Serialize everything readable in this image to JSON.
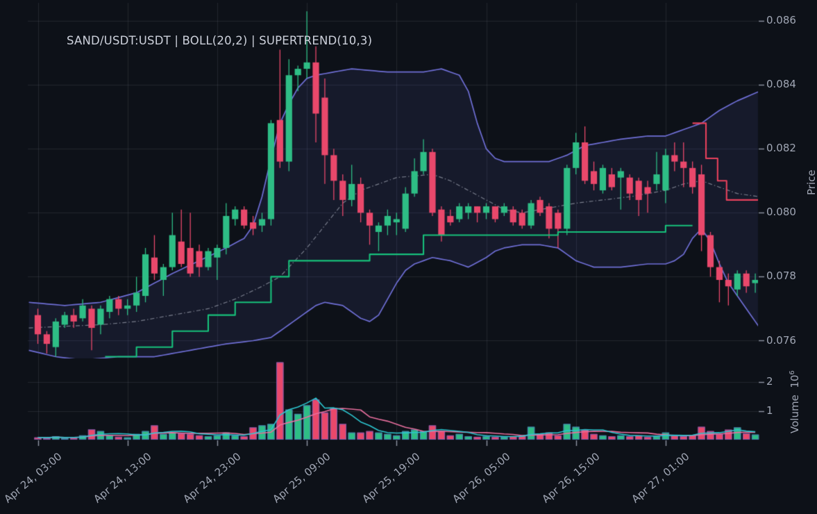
{
  "title": "SAND/USDT:USDT | BOLL(20,2) | SUPERTREND(10,3)",
  "axes": {
    "price_label": "Price",
    "volume_label": "Volume",
    "volume_scale_base": "10",
    "volume_scale_exp": "6"
  },
  "colors": {
    "background": "#0d1118",
    "grid": "rgba(170,180,200,0.13)",
    "tick_mark": "#9096a3",
    "axis_text": "#a0a6b4",
    "title_text": "#cdd1db",
    "up": "#2ebd85",
    "down": "#e9486b",
    "boll_band": "#6f6fd6",
    "boll_fill": "rgba(111,111,214,0.10)",
    "boll_mid": "rgba(186,192,205,0.6)",
    "supertrend_up": "#17c17b",
    "supertrend_down": "#e8415c",
    "vol_ma_fast": "#2cc5cf",
    "vol_ma_slow": "#e86f9e",
    "vol_bar_edge": "rgba(84,98,200,0.75)"
  },
  "chart_data": {
    "type": "candlestick",
    "symbol": "SAND/USDT:USDT",
    "interval": "1h",
    "indicators": [
      "BOLL(20,2)",
      "SUPERTREND(10,3)"
    ],
    "start_time": "Apr 24, 03:00",
    "end_time": "Apr 27, 11:00",
    "ylim": [
      0.0754,
      0.0866
    ],
    "volume_ylim_millions": [
      0,
      2.95
    ],
    "price_ticks": [
      "0.076",
      "0.078",
      "0.080",
      "0.082",
      "0.084",
      "0.086"
    ],
    "volume_ticks": [
      "1",
      "2"
    ],
    "x_ticks": {
      "indices": [
        0,
        10,
        20,
        30,
        40,
        50,
        60,
        70
      ],
      "labels": [
        "Apr 24, 03:00",
        "Apr 24, 13:00",
        "Apr 24, 23:00",
        "Apr 25, 09:00",
        "Apr 25, 19:00",
        "Apr 26, 05:00",
        "Apr 26, 15:00",
        "Apr 27, 01:00"
      ]
    },
    "ohlcv": [
      [
        0.0768,
        0.077,
        0.0759,
        0.0762,
        0.08
      ],
      [
        0.0762,
        0.0763,
        0.0756,
        0.0759,
        0.06
      ],
      [
        0.0758,
        0.0767,
        0.0755,
        0.0766,
        0.12
      ],
      [
        0.0765,
        0.0769,
        0.0764,
        0.0768,
        0.06
      ],
      [
        0.0768,
        0.077,
        0.0764,
        0.0766,
        0.07
      ],
      [
        0.0767,
        0.0773,
        0.0766,
        0.0771,
        0.15
      ],
      [
        0.077,
        0.0771,
        0.0757,
        0.0764,
        0.36
      ],
      [
        0.0765,
        0.0771,
        0.0762,
        0.077,
        0.3
      ],
      [
        0.0769,
        0.0774,
        0.0767,
        0.0773,
        0.15
      ],
      [
        0.0773,
        0.0774,
        0.0768,
        0.077,
        0.1
      ],
      [
        0.077,
        0.0773,
        0.0768,
        0.0771,
        0.08
      ],
      [
        0.0771,
        0.078,
        0.0769,
        0.0775,
        0.2
      ],
      [
        0.0774,
        0.0789,
        0.0772,
        0.0787,
        0.3
      ],
      [
        0.0786,
        0.0793,
        0.0779,
        0.0781,
        0.5
      ],
      [
        0.0779,
        0.0784,
        0.0774,
        0.0783,
        0.2
      ],
      [
        0.0783,
        0.08,
        0.0782,
        0.0793,
        0.25
      ],
      [
        0.0791,
        0.0801,
        0.0783,
        0.0784,
        0.22
      ],
      [
        0.0789,
        0.08,
        0.078,
        0.0781,
        0.2
      ],
      [
        0.0788,
        0.079,
        0.078,
        0.0783,
        0.15
      ],
      [
        0.0783,
        0.0789,
        0.0782,
        0.0788,
        0.12
      ],
      [
        0.0786,
        0.079,
        0.0779,
        0.0789,
        0.15
      ],
      [
        0.0789,
        0.0803,
        0.0787,
        0.0799,
        0.25
      ],
      [
        0.0798,
        0.0802,
        0.0796,
        0.0801,
        0.15
      ],
      [
        0.0801,
        0.0802,
        0.0795,
        0.0796,
        0.12
      ],
      [
        0.0797,
        0.0799,
        0.0793,
        0.0795,
        0.43
      ],
      [
        0.0796,
        0.08,
        0.0794,
        0.0798,
        0.5
      ],
      [
        0.0798,
        0.0829,
        0.0796,
        0.0828,
        0.55
      ],
      [
        0.0829,
        0.0851,
        0.0814,
        0.0816,
        2.7
      ],
      [
        0.0816,
        0.0848,
        0.0813,
        0.0843,
        1.05
      ],
      [
        0.0843,
        0.0846,
        0.0838,
        0.0845,
        0.9
      ],
      [
        0.0845,
        0.0863,
        0.0842,
        0.0847,
        1.2
      ],
      [
        0.0847,
        0.0852,
        0.0822,
        0.0831,
        1.4
      ],
      [
        0.0836,
        0.0842,
        0.0809,
        0.0818,
        0.95
      ],
      [
        0.0818,
        0.082,
        0.0804,
        0.081,
        1.1
      ],
      [
        0.081,
        0.0812,
        0.0799,
        0.0804,
        0.55
      ],
      [
        0.0804,
        0.0815,
        0.0802,
        0.0809,
        0.25
      ],
      [
        0.0809,
        0.0811,
        0.0797,
        0.08,
        0.25
      ],
      [
        0.08,
        0.0801,
        0.079,
        0.0796,
        0.3
      ],
      [
        0.0794,
        0.0797,
        0.0788,
        0.0796,
        0.25
      ],
      [
        0.0796,
        0.0801,
        0.0793,
        0.0799,
        0.2
      ],
      [
        0.0797,
        0.08,
        0.0793,
        0.0798,
        0.15
      ],
      [
        0.0795,
        0.0808,
        0.0794,
        0.0806,
        0.3
      ],
      [
        0.0806,
        0.0817,
        0.0805,
        0.0813,
        0.35
      ],
      [
        0.0813,
        0.0823,
        0.0812,
        0.0819,
        0.3
      ],
      [
        0.0819,
        0.082,
        0.0799,
        0.08,
        0.5
      ],
      [
        0.0801,
        0.0802,
        0.0791,
        0.0793,
        0.3
      ],
      [
        0.0799,
        0.0801,
        0.0796,
        0.0797,
        0.15
      ],
      [
        0.0798,
        0.0803,
        0.0797,
        0.0802,
        0.2
      ],
      [
        0.08,
        0.0803,
        0.0798,
        0.0802,
        0.12
      ],
      [
        0.0802,
        0.0802,
        0.0797,
        0.08,
        0.1
      ],
      [
        0.08,
        0.0803,
        0.0798,
        0.0802,
        0.12
      ],
      [
        0.0802,
        0.0802,
        0.0797,
        0.0798,
        0.1
      ],
      [
        0.08,
        0.0803,
        0.0799,
        0.0802,
        0.1
      ],
      [
        0.0801,
        0.0802,
        0.0796,
        0.0797,
        0.12
      ],
      [
        0.08,
        0.0801,
        0.0795,
        0.0796,
        0.15
      ],
      [
        0.0796,
        0.0804,
        0.0795,
        0.0803,
        0.45
      ],
      [
        0.0804,
        0.0805,
        0.0799,
        0.08,
        0.2
      ],
      [
        0.0802,
        0.0803,
        0.0792,
        0.0795,
        0.25
      ],
      [
        0.08,
        0.0801,
        0.0789,
        0.0795,
        0.15
      ],
      [
        0.0795,
        0.0815,
        0.0793,
        0.0814,
        0.55
      ],
      [
        0.0814,
        0.0825,
        0.0812,
        0.0822,
        0.45
      ],
      [
        0.0822,
        0.0827,
        0.0809,
        0.081,
        0.35
      ],
      [
        0.0813,
        0.0816,
        0.0807,
        0.0809,
        0.2
      ],
      [
        0.0807,
        0.0815,
        0.0806,
        0.0814,
        0.15
      ],
      [
        0.0812,
        0.0814,
        0.0807,
        0.0808,
        0.12
      ],
      [
        0.0811,
        0.0814,
        0.0801,
        0.0813,
        0.15
      ],
      [
        0.0811,
        0.0812,
        0.0804,
        0.0806,
        0.12
      ],
      [
        0.081,
        0.0811,
        0.0799,
        0.0804,
        0.15
      ],
      [
        0.0808,
        0.081,
        0.08,
        0.0806,
        0.1
      ],
      [
        0.0809,
        0.0819,
        0.0807,
        0.0812,
        0.12
      ],
      [
        0.0807,
        0.082,
        0.0803,
        0.0818,
        0.25
      ],
      [
        0.0818,
        0.0822,
        0.0813,
        0.0816,
        0.15
      ],
      [
        0.0816,
        0.0822,
        0.0808,
        0.0814,
        0.12
      ],
      [
        0.0814,
        0.0816,
        0.0806,
        0.0808,
        0.15
      ],
      [
        0.0812,
        0.0815,
        0.0788,
        0.0793,
        0.45
      ],
      [
        0.0793,
        0.0794,
        0.078,
        0.0783,
        0.3
      ],
      [
        0.0783,
        0.0785,
        0.0772,
        0.0779,
        0.2
      ],
      [
        0.0779,
        0.0781,
        0.0771,
        0.0777,
        0.35
      ],
      [
        0.0776,
        0.0782,
        0.0774,
        0.0781,
        0.43
      ],
      [
        0.0781,
        0.0782,
        0.0775,
        0.0777,
        0.22
      ],
      [
        0.0778,
        0.0781,
        0.0775,
        0.0779,
        0.18
      ]
    ],
    "boll_upper": [
      [
        -1,
        0.0772
      ],
      [
        3,
        0.0771
      ],
      [
        7,
        0.0772
      ],
      [
        11,
        0.0775
      ],
      [
        15,
        0.0781
      ],
      [
        18,
        0.0785
      ],
      [
        21,
        0.0789
      ],
      [
        23,
        0.0792
      ],
      [
        24,
        0.0796
      ],
      [
        25,
        0.0805
      ],
      [
        26,
        0.0817
      ],
      [
        27,
        0.0828
      ],
      [
        28,
        0.0834
      ],
      [
        29,
        0.0839
      ],
      [
        30,
        0.0842
      ],
      [
        31,
        0.0843
      ],
      [
        33,
        0.0844
      ],
      [
        35,
        0.0845
      ],
      [
        39,
        0.0844
      ],
      [
        43,
        0.0844
      ],
      [
        45,
        0.0845
      ],
      [
        47,
        0.0843
      ],
      [
        48,
        0.0838
      ],
      [
        49,
        0.0828
      ],
      [
        50,
        0.082
      ],
      [
        51,
        0.0817
      ],
      [
        52,
        0.0816
      ],
      [
        57,
        0.0816
      ],
      [
        59,
        0.0818
      ],
      [
        61,
        0.0821
      ],
      [
        63,
        0.0822
      ],
      [
        65,
        0.0823
      ],
      [
        68,
        0.0824
      ],
      [
        70,
        0.0824
      ],
      [
        72,
        0.0826
      ],
      [
        74,
        0.0828
      ],
      [
        75,
        0.083
      ],
      [
        76,
        0.0832
      ],
      [
        78,
        0.0835
      ],
      [
        80.5,
        0.0838
      ]
    ],
    "boll_middle": [
      [
        -1,
        0.0764
      ],
      [
        7,
        0.0765
      ],
      [
        11,
        0.0766
      ],
      [
        15,
        0.0768
      ],
      [
        19,
        0.077
      ],
      [
        22,
        0.0773
      ],
      [
        25,
        0.0777
      ],
      [
        27,
        0.078
      ],
      [
        28,
        0.0783
      ],
      [
        30,
        0.0789
      ],
      [
        32,
        0.0796
      ],
      [
        34,
        0.0803
      ],
      [
        36,
        0.0807
      ],
      [
        38,
        0.0809
      ],
      [
        40,
        0.0811
      ],
      [
        44,
        0.0812
      ],
      [
        46,
        0.081
      ],
      [
        48,
        0.0807
      ],
      [
        50,
        0.0804
      ],
      [
        52,
        0.0801
      ],
      [
        54,
        0.08
      ],
      [
        56,
        0.0801
      ],
      [
        58,
        0.0802
      ],
      [
        60,
        0.0803
      ],
      [
        63,
        0.0804
      ],
      [
        66,
        0.0805
      ],
      [
        68,
        0.0806
      ],
      [
        70,
        0.0807
      ],
      [
        72,
        0.0809
      ],
      [
        74,
        0.081
      ],
      [
        76,
        0.0808
      ],
      [
        78,
        0.0806
      ],
      [
        80.5,
        0.0805
      ]
    ],
    "boll_lower": [
      [
        -1,
        0.0757
      ],
      [
        2,
        0.0755
      ],
      [
        5,
        0.0754
      ],
      [
        9,
        0.0755
      ],
      [
        13,
        0.0755
      ],
      [
        17,
        0.0757
      ],
      [
        21,
        0.0759
      ],
      [
        24,
        0.076
      ],
      [
        26,
        0.0761
      ],
      [
        27,
        0.0763
      ],
      [
        28,
        0.0765
      ],
      [
        29,
        0.0767
      ],
      [
        30,
        0.0769
      ],
      [
        31,
        0.0771
      ],
      [
        32,
        0.0772
      ],
      [
        34,
        0.0771
      ],
      [
        35,
        0.0769
      ],
      [
        36,
        0.0767
      ],
      [
        37,
        0.0766
      ],
      [
        38,
        0.0768
      ],
      [
        39,
        0.0773
      ],
      [
        40,
        0.0778
      ],
      [
        41,
        0.0782
      ],
      [
        42,
        0.0784
      ],
      [
        43,
        0.0785
      ],
      [
        44,
        0.0786
      ],
      [
        46,
        0.0785
      ],
      [
        48,
        0.0783
      ],
      [
        50,
        0.0786
      ],
      [
        51,
        0.0788
      ],
      [
        52,
        0.0789
      ],
      [
        54,
        0.079
      ],
      [
        56,
        0.079
      ],
      [
        58,
        0.0789
      ],
      [
        59,
        0.0787
      ],
      [
        60,
        0.0785
      ],
      [
        61,
        0.0784
      ],
      [
        62,
        0.0783
      ],
      [
        65,
        0.0783
      ],
      [
        68,
        0.0784
      ],
      [
        70,
        0.0784
      ],
      [
        71,
        0.0785
      ],
      [
        72,
        0.0787
      ],
      [
        73,
        0.0792
      ],
      [
        74,
        0.0795
      ],
      [
        75,
        0.0791
      ],
      [
        76,
        0.0784
      ],
      [
        77,
        0.0778
      ],
      [
        78,
        0.0774
      ],
      [
        79,
        0.077
      ],
      [
        80.5,
        0.0764
      ]
    ],
    "supertrend_up": [
      [
        7.5,
        11,
        0.0755
      ],
      [
        11,
        15,
        0.0758
      ],
      [
        15,
        19,
        0.0763
      ],
      [
        19,
        22,
        0.0768
      ],
      [
        22,
        26,
        0.0772
      ],
      [
        26,
        28,
        0.078
      ],
      [
        28,
        37,
        0.0785
      ],
      [
        37,
        43,
        0.0787
      ],
      [
        43,
        58,
        0.0793
      ],
      [
        58,
        70,
        0.0794
      ],
      [
        70,
        73,
        0.0796
      ]
    ],
    "supertrend_down": [
      [
        73,
        74.5,
        0.0828
      ],
      [
        74.5,
        75.8,
        0.0817
      ],
      [
        75.8,
        76.8,
        0.081
      ],
      [
        76.8,
        80.4,
        0.0804
      ]
    ],
    "volume_ma_fast_period": 5,
    "volume_ma_slow_period": 10
  }
}
